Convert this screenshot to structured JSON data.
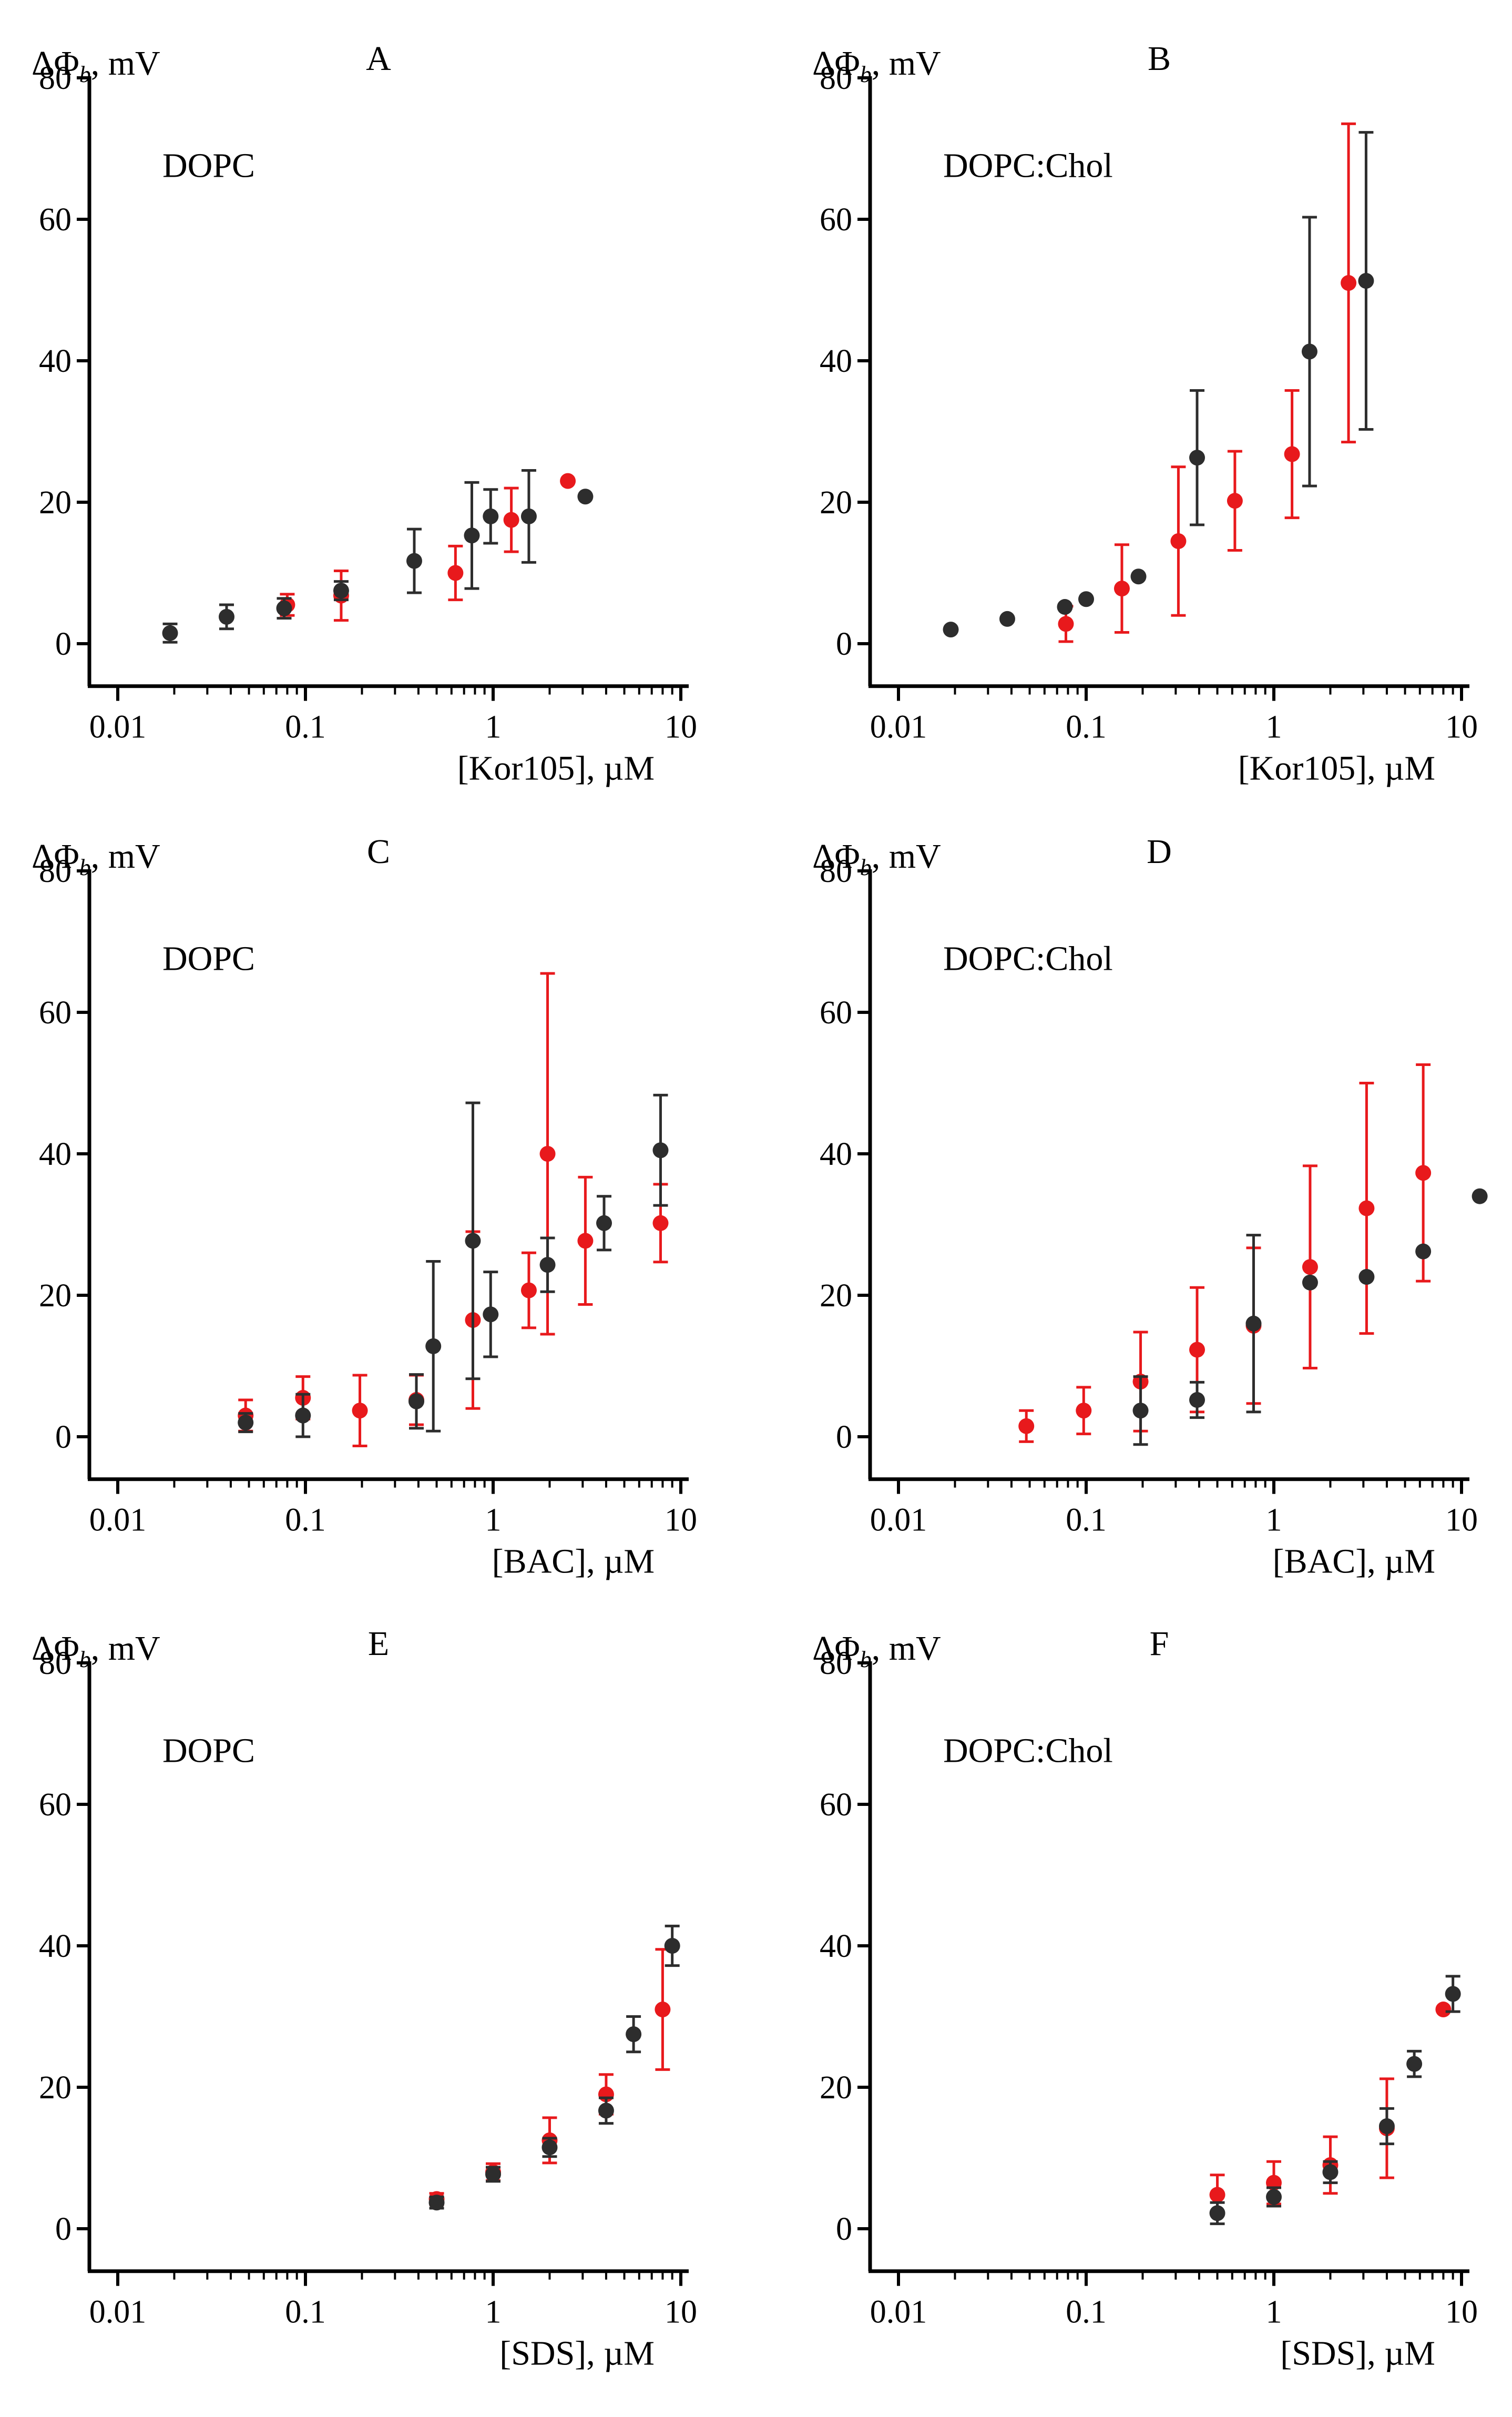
{
  "colors": {
    "series1": "#e8191c",
    "series2": "#2d2d2d",
    "axis": "#000000"
  },
  "chart_data": [
    {
      "type": "scatter",
      "panel": "A",
      "label": "DOPC",
      "ylabel": "ΔΦ",
      "ylabel_sub": "b",
      "ylabel_unit": ", mV",
      "xlabel": "[Kor105], µM",
      "xscale": "log",
      "xticks": [
        0.01,
        0.1,
        1,
        10
      ],
      "xtick_labels": [
        "0.01",
        "0.1",
        "1",
        "10"
      ],
      "xlim": [
        0.01,
        15
      ],
      "yticks": [
        0,
        20,
        40,
        60,
        80
      ],
      "ylim": [
        -6,
        80
      ],
      "series": [
        {
          "name": "red",
          "color": "#e8191c",
          "points": [
            {
              "x": 0.08,
              "y": 5.5,
              "err": 1.5
            },
            {
              "x": 0.155,
              "y": 6.8,
              "err": 3.5
            },
            {
              "x": 0.63,
              "y": 10.0,
              "err": 3.8
            },
            {
              "x": 1.25,
              "y": 17.5,
              "err": 4.5
            },
            {
              "x": 2.5,
              "y": 23.0,
              "err": 0
            }
          ]
        },
        {
          "name": "black",
          "color": "#2d2d2d",
          "points": [
            {
              "x": 0.019,
              "y": 1.5,
              "err": 1.3
            },
            {
              "x": 0.038,
              "y": 3.8,
              "err": 1.7
            },
            {
              "x": 0.077,
              "y": 5.0,
              "err": 1.4
            },
            {
              "x": 0.155,
              "y": 7.5,
              "err": 1.3
            },
            {
              "x": 0.38,
              "y": 11.7,
              "err": 4.5
            },
            {
              "x": 0.77,
              "y": 15.3,
              "err": 7.5
            },
            {
              "x": 0.97,
              "y": 18.0,
              "err": 3.8
            },
            {
              "x": 1.55,
              "y": 18.0,
              "err": 6.5
            },
            {
              "x": 3.1,
              "y": 20.8,
              "err": 0
            }
          ]
        }
      ]
    },
    {
      "type": "scatter",
      "panel": "B",
      "label": "DOPC:Chol",
      "ylabel": "ΔΦ",
      "ylabel_sub": "b",
      "ylabel_unit": ", mV",
      "xlabel": "[Kor105], µM",
      "xscale": "log",
      "xticks": [
        0.01,
        0.1,
        1,
        10
      ],
      "xtick_labels": [
        "0.01",
        "0.1",
        "1",
        "10"
      ],
      "xlim": [
        0.01,
        15
      ],
      "yticks": [
        0,
        20,
        40,
        60,
        80
      ],
      "ylim": [
        -6,
        80
      ],
      "series": [
        {
          "name": "red",
          "color": "#e8191c",
          "points": [
            {
              "x": 0.078,
              "y": 2.8,
              "err": 2.5
            },
            {
              "x": 0.155,
              "y": 7.8,
              "err": 6.2
            },
            {
              "x": 0.31,
              "y": 14.5,
              "err": 10.5
            },
            {
              "x": 0.62,
              "y": 20.2,
              "err": 7.0
            },
            {
              "x": 1.25,
              "y": 26.8,
              "err": 9.0
            },
            {
              "x": 2.5,
              "y": 51.0,
              "err": 22.5
            }
          ]
        },
        {
          "name": "black",
          "color": "#2d2d2d",
          "points": [
            {
              "x": 0.019,
              "y": 2.0,
              "err": 0
            },
            {
              "x": 0.038,
              "y": 3.5,
              "err": 0
            },
            {
              "x": 0.077,
              "y": 5.2,
              "err": 0
            },
            {
              "x": 0.1,
              "y": 6.3,
              "err": 0
            },
            {
              "x": 0.19,
              "y": 9.5,
              "err": 0
            },
            {
              "x": 0.39,
              "y": 26.3,
              "err": 9.5
            },
            {
              "x": 1.55,
              "y": 41.3,
              "err": 19.0
            },
            {
              "x": 3.1,
              "y": 51.3,
              "err": 21.0
            }
          ]
        }
      ]
    },
    {
      "type": "scatter",
      "panel": "C",
      "label": "DOPC",
      "ylabel": "ΔΦ",
      "ylabel_sub": "b",
      "ylabel_unit": ", mV",
      "xlabel": "[BAC], µM",
      "xscale": "log",
      "xticks": [
        0.01,
        0.1,
        1,
        10
      ],
      "xtick_labels": [
        "0.01",
        "0.1",
        "1",
        "10"
      ],
      "xlim": [
        0.01,
        15
      ],
      "yticks": [
        0,
        20,
        40,
        60,
        80
      ],
      "ylim": [
        -6,
        80
      ],
      "series": [
        {
          "name": "red",
          "color": "#e8191c",
          "points": [
            {
              "x": 0.048,
              "y": 3.0,
              "err": 2.2
            },
            {
              "x": 0.097,
              "y": 5.5,
              "err": 3.0
            },
            {
              "x": 0.195,
              "y": 3.7,
              "err": 5.0
            },
            {
              "x": 0.39,
              "y": 5.2,
              "err": 3.5
            },
            {
              "x": 0.78,
              "y": 16.5,
              "err": 12.5
            },
            {
              "x": 1.55,
              "y": 20.7,
              "err": 5.3
            },
            {
              "x": 1.95,
              "y": 40.0,
              "err": 25.5
            },
            {
              "x": 3.1,
              "y": 27.7,
              "err": 9.0
            },
            {
              "x": 7.8,
              "y": 30.2,
              "err": 5.5
            }
          ]
        },
        {
          "name": "black",
          "color": "#2d2d2d",
          "points": [
            {
              "x": 0.048,
              "y": 2.0,
              "err": 1.3
            },
            {
              "x": 0.097,
              "y": 3.0,
              "err": 3.0
            },
            {
              "x": 0.39,
              "y": 5.0,
              "err": 3.8
            },
            {
              "x": 0.48,
              "y": 12.8,
              "err": 12.0
            },
            {
              "x": 0.78,
              "y": 27.7,
              "err": 19.5
            },
            {
              "x": 0.97,
              "y": 17.3,
              "err": 6.0
            },
            {
              "x": 1.95,
              "y": 24.3,
              "err": 3.8
            },
            {
              "x": 3.9,
              "y": 30.2,
              "err": 3.8
            },
            {
              "x": 7.8,
              "y": 40.5,
              "err": 7.8
            }
          ]
        }
      ]
    },
    {
      "type": "scatter",
      "panel": "D",
      "label": "DOPC:Chol",
      "ylabel": "ΔΦ",
      "ylabel_sub": "b",
      "ylabel_unit": ", mV",
      "xlabel": "[BAC], µM",
      "xscale": "log",
      "xticks": [
        0.01,
        0.1,
        1,
        10
      ],
      "xtick_labels": [
        "0.01",
        "0.1",
        "1",
        "10"
      ],
      "xlim": [
        0.01,
        15
      ],
      "yticks": [
        0,
        20,
        40,
        60,
        80
      ],
      "ylim": [
        -6,
        80
      ],
      "series": [
        {
          "name": "red",
          "color": "#e8191c",
          "points": [
            {
              "x": 0.048,
              "y": 1.5,
              "err": 2.2
            },
            {
              "x": 0.097,
              "y": 3.7,
              "err": 3.3
            },
            {
              "x": 0.195,
              "y": 7.8,
              "err": 7.0
            },
            {
              "x": 0.39,
              "y": 12.3,
              "err": 8.8
            },
            {
              "x": 0.78,
              "y": 15.7,
              "err": 11.0
            },
            {
              "x": 1.56,
              "y": 24.0,
              "err": 14.3
            },
            {
              "x": 3.12,
              "y": 32.3,
              "err": 17.7
            },
            {
              "x": 6.25,
              "y": 37.3,
              "err": 15.3
            }
          ]
        },
        {
          "name": "black",
          "color": "#2d2d2d",
          "points": [
            {
              "x": 0.195,
              "y": 3.7,
              "err": 4.8
            },
            {
              "x": 0.39,
              "y": 5.2,
              "err": 2.5
            },
            {
              "x": 0.78,
              "y": 16.0,
              "err": 12.5
            },
            {
              "x": 1.56,
              "y": 21.8,
              "err": 0
            },
            {
              "x": 3.12,
              "y": 22.6,
              "err": 0
            },
            {
              "x": 6.25,
              "y": 26.2,
              "err": 0
            },
            {
              "x": 12.5,
              "y": 34.0,
              "err": 0
            }
          ]
        }
      ]
    },
    {
      "type": "scatter",
      "panel": "E",
      "label": "DOPC",
      "ylabel": "ΔΦ",
      "ylabel_sub": "b",
      "ylabel_unit": ", mV",
      "xlabel": "[SDS], µM",
      "xscale": "log",
      "xticks": [
        0.01,
        0.1,
        1,
        10
      ],
      "xtick_labels": [
        "0.01",
        "0.1",
        "1",
        "10"
      ],
      "xlim": [
        0.01,
        15
      ],
      "yticks": [
        0,
        20,
        40,
        60,
        80
      ],
      "ylim": [
        -6,
        80
      ],
      "series": [
        {
          "name": "red",
          "color": "#e8191c",
          "points": [
            {
              "x": 0.5,
              "y": 4.2,
              "err": 0.8
            },
            {
              "x": 1.0,
              "y": 8.0,
              "err": 1.2
            },
            {
              "x": 2.0,
              "y": 12.5,
              "err": 3.2
            },
            {
              "x": 4.0,
              "y": 19.0,
              "err": 2.8
            },
            {
              "x": 8.0,
              "y": 31.0,
              "err": 8.5
            }
          ]
        },
        {
          "name": "black",
          "color": "#2d2d2d",
          "points": [
            {
              "x": 0.5,
              "y": 3.7,
              "err": 0.8
            },
            {
              "x": 1.0,
              "y": 7.7,
              "err": 1.0
            },
            {
              "x": 2.0,
              "y": 11.5,
              "err": 1.3
            },
            {
              "x": 4.0,
              "y": 16.7,
              "err": 1.8
            },
            {
              "x": 5.6,
              "y": 27.5,
              "err": 2.5
            },
            {
              "x": 9.0,
              "y": 40.0,
              "err": 2.8
            }
          ]
        }
      ]
    },
    {
      "type": "scatter",
      "panel": "F",
      "label": "DOPC:Chol",
      "ylabel": "ΔΦ",
      "ylabel_sub": "b",
      "ylabel_unit": ", mV",
      "xlabel": "[SDS], µM",
      "xscale": "log",
      "xticks": [
        0.01,
        0.1,
        1,
        10
      ],
      "xtick_labels": [
        "0.01",
        "0.1",
        "1",
        "10"
      ],
      "xlim": [
        0.01,
        15
      ],
      "yticks": [
        0,
        20,
        40,
        60,
        80
      ],
      "ylim": [
        -6,
        80
      ],
      "series": [
        {
          "name": "red",
          "color": "#e8191c",
          "points": [
            {
              "x": 0.5,
              "y": 4.8,
              "err": 2.8
            },
            {
              "x": 1.0,
              "y": 6.5,
              "err": 3.0
            },
            {
              "x": 2.0,
              "y": 9.0,
              "err": 4.0
            },
            {
              "x": 4.0,
              "y": 14.2,
              "err": 7.0
            },
            {
              "x": 8.0,
              "y": 31.0,
              "err": 0
            }
          ]
        },
        {
          "name": "black",
          "color": "#2d2d2d",
          "points": [
            {
              "x": 0.5,
              "y": 2.2,
              "err": 1.5
            },
            {
              "x": 1.0,
              "y": 4.5,
              "err": 1.3
            },
            {
              "x": 2.0,
              "y": 8.0,
              "err": 1.5
            },
            {
              "x": 4.0,
              "y": 14.5,
              "err": 2.5
            },
            {
              "x": 5.6,
              "y": 23.3,
              "err": 1.8
            },
            {
              "x": 9.0,
              "y": 33.2,
              "err": 2.5
            }
          ]
        }
      ]
    }
  ]
}
